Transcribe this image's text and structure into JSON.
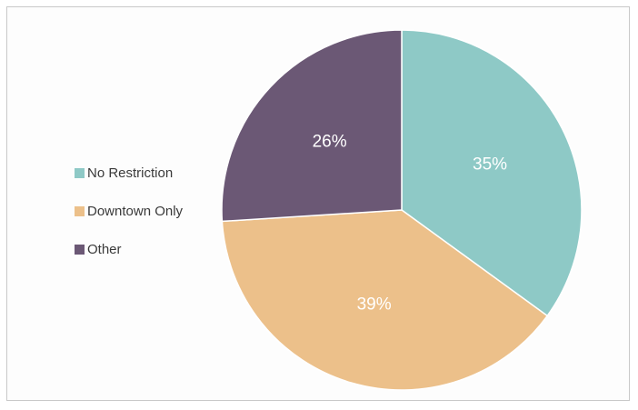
{
  "chart_data": {
    "type": "pie",
    "title": "",
    "categories": [
      "No Restriction",
      "Downtown Only",
      "Other"
    ],
    "values": [
      35,
      39,
      26
    ],
    "labels": [
      "35%",
      "39%",
      "26%"
    ],
    "colors": [
      "#8ec9c6",
      "#ecc08a",
      "#6b5875"
    ],
    "legend_position": "left"
  },
  "legend": {
    "items": [
      {
        "label": "No Restriction",
        "color": "#8ec9c6"
      },
      {
        "label": "Downtown Only",
        "color": "#ecc08a"
      },
      {
        "label": "Other",
        "color": "#6b5875"
      }
    ]
  }
}
